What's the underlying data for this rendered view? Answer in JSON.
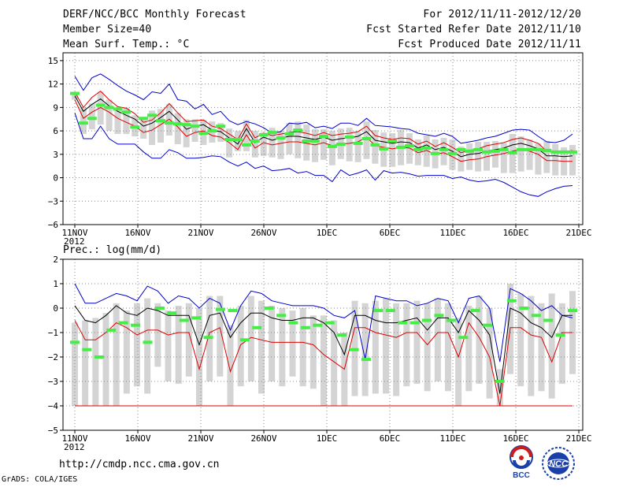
{
  "header": {
    "title": "DERF/NCC/BCC Monthly Forecast",
    "member_size": "Member Size=40",
    "variable": "Mean Surf. Temp.: °C",
    "forecast_period": "For 2012/11/11-2012/12/20",
    "start_date": "Fcst Started Refer Date 2012/11/10",
    "produced_date": "Fcst Produced Date 2012/11/11"
  },
  "footer": {
    "url": "http://cmdp.ncc.cma.gov.cn",
    "grads": "GrADS: COLA/IGES"
  },
  "logos": {
    "left_text": "BCC",
    "right_text": "NCC"
  },
  "colors": {
    "max_line": "#0000cc",
    "min_line": "#dd0000",
    "mean_line": "#000000",
    "obs_marker": "#44ee44",
    "box": "#d4d4d4",
    "grid": "#888888"
  },
  "chart_data": [
    {
      "type": "line",
      "title": "Mean Surf. Temp.: °C",
      "xlabel": "",
      "ylabel": "°C",
      "ylim": [
        -6,
        16
      ],
      "yticks": [
        15,
        12,
        9,
        6,
        3,
        0,
        -3,
        -6
      ],
      "ytick_labels": [
        "15",
        "12",
        "9",
        "6",
        "3",
        "0",
        "−3",
        "−6"
      ],
      "x_tick_days": [
        1,
        6,
        11,
        16,
        21,
        26,
        31,
        36,
        41
      ],
      "x_tick_labels": [
        "11NOV",
        "16NOV",
        "21NOV",
        "26NOV",
        "1DEC",
        "6DEC",
        "11DEC",
        "16DEC",
        "21DEC"
      ],
      "x_year_label": "2012",
      "series": [
        {
          "name": "Max",
          "values": [
            13,
            11.2,
            12.8,
            13.3,
            12.6,
            11.8,
            11.1,
            10.6,
            10,
            11,
            10.8,
            12,
            10,
            9.8,
            8.8,
            9.4,
            8.1,
            8.5,
            7.3,
            6.8,
            7.2,
            6.9,
            6.4,
            5.7,
            5.9,
            7,
            6.9,
            7.1,
            6.4,
            6.6,
            6.3,
            7,
            7,
            6.7,
            7.6,
            6.7,
            6.6,
            6.5,
            6.3,
            6.2,
            5.7,
            5.5,
            5.3,
            5.7,
            5.3,
            4.4,
            4.6,
            4.8,
            5.1,
            5.3,
            5.7,
            6.1,
            6.2,
            6.1,
            5.3,
            4.6,
            4.5,
            4.8,
            5.6
          ]
        },
        {
          "name": "Upper",
          "values": [
            11,
            9,
            10.3,
            11.1,
            10,
            9.1,
            8.9,
            8.2,
            7.1,
            7.4,
            8.3,
            9.5,
            8.3,
            7.2,
            7.3,
            7.4,
            6.6,
            6.3,
            5.6,
            4.9,
            6.9,
            5.1,
            5.7,
            5.4,
            5.6,
            5.8,
            5.9,
            5.7,
            5.4,
            5.8,
            5.4,
            5.6,
            5.7,
            5.9,
            6.6,
            5.4,
            5.1,
            4.9,
            5.1,
            5.0,
            4.3,
            4.7,
            4.0,
            4.5,
            3.9,
            3.2,
            3.5,
            3.7,
            4.1,
            4.3,
            4.5,
            4.9,
            5.1,
            4.8,
            4.4,
            3.4,
            3.3,
            3.3,
            3.5
          ]
        },
        {
          "name": "Mean",
          "values": [
            10.5,
            8.5,
            9.4,
            10.1,
            9.2,
            8.5,
            8.0,
            7.5,
            6.6,
            7.0,
            7.7,
            8.5,
            7.4,
            6.2,
            6.6,
            6.8,
            6.1,
            5.9,
            5.1,
            4.3,
            6.3,
            4.5,
            5.2,
            4.8,
            5.1,
            5.3,
            5.3,
            5.1,
            4.9,
            5.2,
            4.8,
            5.0,
            5.1,
            5.3,
            5.9,
            4.8,
            4.6,
            4.4,
            4.6,
            4.5,
            3.8,
            4.2,
            3.6,
            3.9,
            3.4,
            2.7,
            3.0,
            3.1,
            3.4,
            3.6,
            3.8,
            4.2,
            4.4,
            4.1,
            3.7,
            2.8,
            2.8,
            2.7,
            2.8
          ]
        },
        {
          "name": "Lower",
          "values": [
            10,
            7.6,
            8.4,
            9.0,
            8.4,
            7.6,
            7.1,
            6.6,
            5.8,
            6.1,
            6.8,
            7.5,
            6.5,
            5.3,
            5.8,
            6.0,
            5.4,
            5.2,
            4.5,
            3.6,
            5.5,
            3.8,
            4.5,
            4.2,
            4.4,
            4.6,
            4.6,
            4.4,
            4.2,
            4.5,
            4.1,
            4.3,
            4.4,
            4.6,
            5.2,
            4.1,
            3.9,
            3.7,
            3.9,
            3.8,
            3.2,
            3.5,
            3.0,
            3.2,
            2.7,
            2.1,
            2.3,
            2.4,
            2.7,
            2.9,
            3.1,
            3.4,
            3.7,
            3.4,
            3.0,
            2.2,
            2.2,
            2.1,
            2.1
          ]
        },
        {
          "name": "Min",
          "values": [
            8.3,
            5,
            5,
            6.6,
            5,
            4.3,
            4.3,
            4.3,
            3.3,
            2.5,
            2.5,
            3.6,
            3.2,
            2.5,
            2.5,
            2.6,
            2.8,
            2.7,
            2.0,
            1.5,
            2.0,
            1.2,
            1.5,
            0.9,
            1.0,
            1.2,
            0.6,
            0.8,
            0.3,
            0.3,
            -0.5,
            1.0,
            0.3,
            0.6,
            1.0,
            -0.3,
            0.9,
            0.6,
            0.7,
            0.5,
            0.2,
            0.3,
            0.3,
            0.3,
            -0.1,
            0.1,
            -0.3,
            -0.5,
            -0.4,
            -0.2,
            -0.6,
            -1.2,
            -1.8,
            -2.2,
            -2.4,
            -1.8,
            -1.4,
            -1.1,
            -1.0
          ]
        },
        {
          "name": "Observed",
          "values": [
            10.8,
            7.0,
            7.6,
            9.3,
            9.0,
            8.8,
            8.4,
            6.5,
            7.6,
            8.0,
            7.3,
            7.0,
            6.9,
            6.8,
            6.6,
            5.7,
            6.0,
            6.6,
            4.9,
            4.9,
            4.2,
            4.7,
            5.5,
            5.8,
            5.1,
            5.6,
            6.1,
            4.7,
            4.7,
            5.3,
            4.0,
            4.3,
            5.2,
            4.4,
            5.0,
            4.2,
            3.7,
            4.7,
            3.9,
            4.1,
            3.6,
            3.8,
            3.1,
            3.6,
            3.1,
            3.6,
            3.4,
            3.6,
            3.3,
            3.4,
            3.6,
            3.2,
            3.6,
            3.6,
            3.6,
            3.5,
            3.3,
            3.3,
            3.3
          ]
        }
      ],
      "box_top": [
        11,
        9,
        9.5,
        11,
        10,
        9,
        9,
        8,
        7.6,
        8.6,
        8.8,
        9.4,
        8.3,
        7.5,
        7.5,
        7.4,
        7.2,
        7.0,
        6.3,
        6.0,
        7.4,
        6.0,
        5.8,
        6.4,
        6.0,
        7.0,
        7.2,
        6.8,
        6.2,
        6.2,
        6.0,
        6.3,
        6.4,
        5.8,
        7.2,
        6.1,
        5.8,
        5.7,
        6.1,
        5.7,
        4.9,
        5.4,
        4.9,
        5.1,
        4.9,
        4.0,
        4.4,
        4.6,
        4.6,
        4.7,
        4.4,
        5.6,
        5.3,
        4.9,
        4.4,
        4.7,
        4.3,
        3.9,
        4.2
      ],
      "box_bottom": [
        10,
        5.6,
        6.2,
        6.8,
        6.0,
        5.6,
        5.6,
        5.3,
        5.0,
        4.2,
        4.5,
        5.4,
        4.3,
        3.9,
        4.6,
        4.2,
        4.5,
        4.6,
        2.6,
        3.4,
        3.4,
        2.6,
        2.8,
        2.6,
        2.4,
        3.0,
        2.5,
        2.2,
        2.0,
        2.3,
        1.6,
        2.4,
        2.1,
        2.0,
        2.4,
        1.8,
        1.4,
        1.4,
        1.6,
        1.8,
        1.6,
        1.4,
        1.2,
        1.6,
        1.0,
        0.8,
        1.0,
        0.8,
        0.9,
        1.3,
        0.6,
        0.6,
        0.8,
        1.0,
        0.4,
        0.6,
        0.3,
        0.3,
        0.3
      ]
    },
    {
      "type": "line",
      "title": "Prec.: log(mm/d)",
      "xlabel": "",
      "ylabel": "log(mm/d)",
      "ylim": [
        -5,
        2
      ],
      "yticks": [
        2,
        1,
        0,
        -1,
        -2,
        -3,
        -4,
        -5
      ],
      "ytick_labels": [
        "2",
        "1",
        "0",
        "−1",
        "−2",
        "−3",
        "−4",
        "−5"
      ],
      "x_tick_days": [
        1,
        6,
        11,
        16,
        21,
        26,
        31,
        36,
        41
      ],
      "x_tick_labels": [
        "11NOV",
        "16NOV",
        "21NOV",
        "26NOV",
        "1DEC",
        "6DEC",
        "11DEC",
        "16DEC",
        "21DEC"
      ],
      "x_year_label": "2012",
      "series": [
        {
          "name": "Max",
          "values": [
            1.0,
            0.2,
            0.2,
            0.4,
            0.6,
            0.5,
            0.3,
            0.9,
            0.7,
            0.2,
            0.5,
            0.4,
            0.0,
            0.4,
            0.2,
            -0.9,
            0.1,
            0.7,
            0.6,
            0.3,
            0.2,
            0.1,
            0.1,
            0.1,
            0.0,
            -0.3,
            -0.4,
            -0.1,
            -2.1,
            0.5,
            0.4,
            0.3,
            0.3,
            0.1,
            0.2,
            0.4,
            0.3,
            -0.6,
            0.4,
            0.5,
            0.0,
            -2.2,
            0.8,
            0.6,
            0.3,
            -0.1,
            0.1,
            -0.3,
            -0.4
          ]
        },
        {
          "name": "Mean",
          "values": [
            0.1,
            -0.5,
            -0.6,
            -0.3,
            0.1,
            -0.2,
            -0.3,
            0.0,
            -0.1,
            -0.3,
            -0.3,
            -0.3,
            -1.5,
            -0.3,
            -0.2,
            -1.2,
            -0.6,
            -0.2,
            -0.2,
            -0.4,
            -0.5,
            -0.5,
            -0.4,
            -0.4,
            -0.6,
            -1.0,
            -1.9,
            -0.3,
            -0.3,
            -0.5,
            -0.6,
            -0.6,
            -0.5,
            -0.4,
            -0.9,
            -0.4,
            -0.4,
            -1.0,
            -0.1,
            -0.5,
            -1.1,
            -3.5,
            0.0,
            -0.2,
            -0.6,
            -0.8,
            -1.2,
            -0.3,
            -0.3
          ]
        },
        {
          "name": "Min",
          "values": [
            -0.5,
            -1.3,
            -1.3,
            -1.0,
            -0.6,
            -0.8,
            -1.1,
            -0.9,
            -0.9,
            -1.1,
            -1.0,
            -1.0,
            -2.5,
            -1.0,
            -0.8,
            -2.6,
            -1.5,
            -1.2,
            -1.3,
            -1.4,
            -1.4,
            -1.4,
            -1.4,
            -1.5,
            -1.9,
            -2.2,
            -2.5,
            -0.8,
            -0.8,
            -1.0,
            -1.1,
            -1.2,
            -1.0,
            -1.0,
            -1.5,
            -1.0,
            -1.0,
            -2.0,
            -0.6,
            -1.2,
            -2.0,
            -4.0,
            -0.8,
            -0.8,
            -1.1,
            -1.2,
            -2.2,
            -1.0,
            -1.0
          ]
        },
        {
          "name": "Floor",
          "values": [
            -4,
            -4
          ]
        },
        {
          "name": "Observed",
          "values": [
            -1.4,
            -1.7,
            -2.0,
            -0.9,
            -0.6,
            -0.7,
            -1.4,
            0.0,
            -0.2,
            -0.5,
            -0.4,
            -1.2,
            -0.05,
            -0.1,
            -1.3,
            -0.8,
            0.0,
            -0.3,
            -0.6,
            -0.8,
            -0.7,
            -0.6,
            -1.1,
            -1.7,
            -2.1,
            -0.1,
            -0.1,
            -0.6,
            -0.6,
            -0.5,
            -0.3,
            -0.5,
            -1.2,
            -0.1,
            -0.7,
            -3.0,
            0.3,
            0.0,
            -0.3,
            -0.5,
            -1.1,
            -0.1
          ]
        }
      ],
      "box_top": [
        -0.6,
        -0.5,
        -0.4,
        -0.2,
        0.2,
        -0.1,
        0.2,
        0.4,
        0.2,
        -0.1,
        0.1,
        0.2,
        0.0,
        0.5,
        0.5,
        -0.7,
        0.1,
        0.5,
        0.3,
        0.1,
        0.0,
        -0.1,
        0.0,
        -0.3,
        -0.3,
        -0.5,
        -1.0,
        0.3,
        0.2,
        0.3,
        0.4,
        0.2,
        0.2,
        0.3,
        0.2,
        0.4,
        0.2,
        -0.4,
        0.1,
        0.5,
        0.0,
        -2.5,
        1.0,
        0.6,
        0.5,
        0.2,
        0.6,
        0.2,
        0.7
      ],
      "box_bottom": [
        -4,
        -4,
        -4,
        -4,
        -4,
        -3.5,
        -3.2,
        -3.5,
        -2.4,
        -3.0,
        -3.1,
        -2.8,
        -4,
        -3.0,
        -2.8,
        -4,
        -3.2,
        -3.0,
        -3.5,
        -3.0,
        -3.2,
        -2.8,
        -3.2,
        -3.3,
        -4,
        -4,
        -4,
        -3.6,
        -3.6,
        -3.5,
        -3.5,
        -3.6,
        -3.2,
        -3.1,
        -3.4,
        -3.0,
        -3.4,
        -4,
        -3.4,
        -3.1,
        -3.7,
        -4,
        -2.7,
        -3.2,
        -3.6,
        -3.4,
        -3.7,
        -3.1,
        -2.7
      ]
    }
  ]
}
